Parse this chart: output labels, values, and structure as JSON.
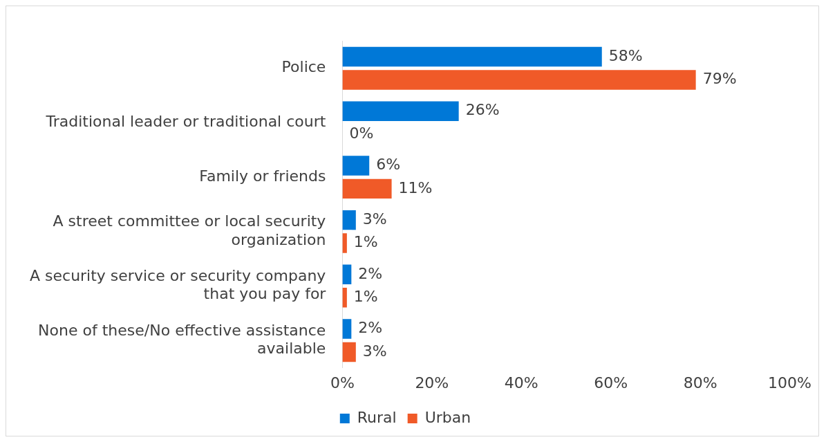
{
  "chart_data": {
    "type": "bar",
    "orientation": "horizontal",
    "categories": [
      "Police",
      "Traditional leader or traditional court",
      "Family or friends",
      "A street committee or local security organization",
      "A security service or security company that you pay for",
      "None of these/No effective assistance available"
    ],
    "series": [
      {
        "name": "Rural",
        "color": "#0078d7",
        "values": [
          58,
          26,
          6,
          3,
          2,
          2
        ],
        "value_labels": [
          "58%",
          "26%",
          "6%",
          "3%",
          "2%",
          "2%"
        ]
      },
      {
        "name": "Urban",
        "color": "#f05a28",
        "values": [
          79,
          0,
          11,
          1,
          1,
          3
        ],
        "value_labels": [
          "79%",
          "0%",
          "11%",
          "1%",
          "1%",
          "3%"
        ]
      }
    ],
    "xlim": [
      0,
      100
    ],
    "xticks": [
      {
        "value": 0,
        "label": "0%"
      },
      {
        "value": 20,
        "label": "20%"
      },
      {
        "value": 40,
        "label": "40%"
      },
      {
        "value": 60,
        "label": "60%"
      },
      {
        "value": 80,
        "label": "80%"
      },
      {
        "value": 100,
        "label": "100%"
      }
    ],
    "grid": false,
    "legend": "bottom"
  }
}
